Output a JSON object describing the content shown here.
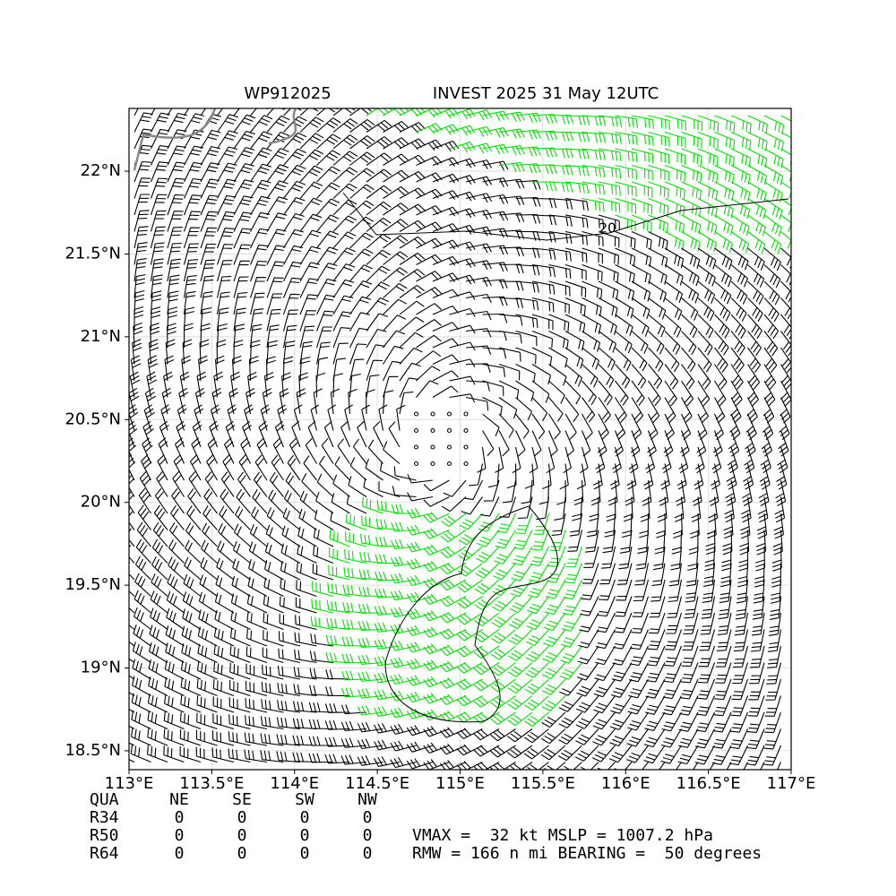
{
  "chart_data": {
    "type": "barbs",
    "title_left": "WP912025",
    "title": "INVEST 2025 31 May 12UTC",
    "xlim": [
      113,
      117
    ],
    "ylim": [
      18.386,
      22.379
    ],
    "xticks": [
      {
        "value": 113,
        "label": "113°E"
      },
      {
        "value": 113.5,
        "label": "113.5°E"
      },
      {
        "value": 114,
        "label": "114°E"
      },
      {
        "value": 114.5,
        "label": "114.5°E"
      },
      {
        "value": 115,
        "label": "115°E"
      },
      {
        "value": 115.5,
        "label": "115.5°E"
      },
      {
        "value": 116,
        "label": "116°E"
      },
      {
        "value": 116.5,
        "label": "116.5°E"
      },
      {
        "value": 117,
        "label": "117°E"
      }
    ],
    "yticks": [
      {
        "value": 18.5,
        "label": "18.5°N"
      },
      {
        "value": 19,
        "label": "19°N"
      },
      {
        "value": 19.5,
        "label": "19.5°N"
      },
      {
        "value": 20,
        "label": "20°N"
      },
      {
        "value": 20.5,
        "label": "20.5°N"
      },
      {
        "value": 21,
        "label": "21°N"
      },
      {
        "value": 21.5,
        "label": "21.5°N"
      },
      {
        "value": 22,
        "label": "22°N"
      }
    ],
    "grid": true,
    "contour_label": "20",
    "barb_color": "#000000",
    "strong_barb_color": "#00e000",
    "table": {
      "header": [
        "QUA",
        "NE",
        "SE",
        "SW",
        "NW"
      ],
      "rows": [
        [
          "R34",
          0,
          0,
          0,
          0
        ],
        [
          "R50",
          0,
          0,
          0,
          0
        ],
        [
          "R64",
          0,
          0,
          0,
          0
        ]
      ]
    },
    "notes": [
      "VMAX =  32 kt MSLP = 1007.2 hPa",
      "RMW = 166 n mi BEARING =  50 degrees"
    ]
  }
}
